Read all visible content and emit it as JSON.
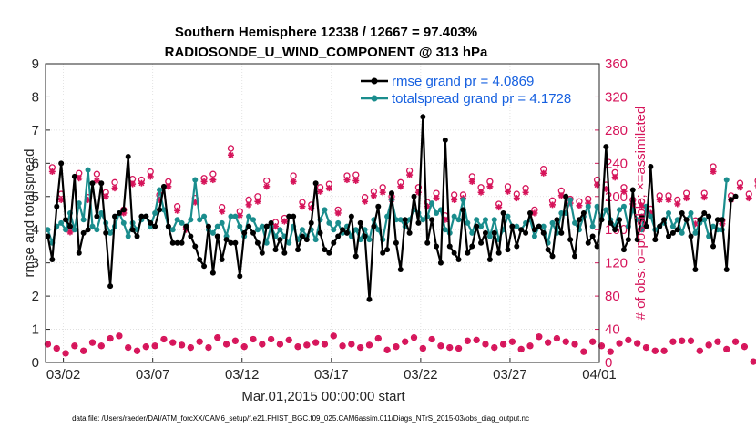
{
  "chart_data": {
    "type": "line",
    "title": "Southern Hemisphere 12338 / 12667 = 97.403%",
    "subtitle": "RADIOSONDE_U_WIND_COMPONENT @ 313 hPa",
    "xlabel": "Mar.01,2015 00:00:00 start",
    "ylabel": "rmse and totalspread",
    "y2label": "# of obs: o=possible; ×=assimilated",
    "xlim": [
      1,
      32
    ],
    "ylim": [
      0,
      9
    ],
    "y2lim": [
      0,
      360
    ],
    "x_ticks": [
      2,
      7,
      12,
      17,
      22,
      27,
      32
    ],
    "x_tick_labels": [
      "03/02",
      "03/07",
      "03/12",
      "03/17",
      "03/22",
      "03/27",
      "04/01"
    ],
    "y_ticks": [
      "0",
      "1",
      "2",
      "3",
      "4",
      "5",
      "6",
      "7",
      "8",
      "9"
    ],
    "y2_ticks": [
      "0",
      "40",
      "80",
      "120",
      "160",
      "200",
      "240",
      "280",
      "320",
      "360"
    ],
    "x_step_days": 0.25,
    "x_start_day": 1.125,
    "series": [
      {
        "name": "rmse grand pr = 4.0869",
        "color": "#000000",
        "axis": "left",
        "values": [
          3.8,
          3.1,
          4.7,
          6.0,
          4.3,
          4.1,
          5.6,
          3.3,
          3.9,
          4.0,
          5.4,
          4.4,
          5.4,
          3.9,
          2.3,
          4.4,
          4.5,
          4.6,
          6.2,
          4.0,
          3.8,
          4.4,
          4.4,
          4.2,
          4.1,
          4.6,
          5.3,
          4.1,
          3.6,
          3.6,
          3.6,
          4.1,
          3.8,
          3.5,
          3.1,
          2.9,
          4.1,
          2.7,
          3.8,
          3.1,
          3.7,
          3.6,
          3.6,
          2.6,
          3.9,
          4.1,
          3.9,
          3.6,
          3.3,
          4.1,
          4.2,
          3.4,
          3.7,
          3.3,
          4.4,
          4.4,
          3.4,
          3.8,
          3.7,
          4.2,
          5.4,
          3.9,
          3.4,
          3.3,
          3.6,
          3.8,
          4.0,
          3.9,
          4.4,
          3.2,
          4.2,
          3.8,
          1.9,
          4.1,
          4.7,
          3.3,
          3.4,
          5.1,
          3.6,
          2.8,
          4.3,
          3.9,
          5.0,
          4.2,
          7.4,
          3.6,
          4.3,
          3.5,
          3.0,
          6.7,
          3.5,
          3.3,
          3.1,
          4.6,
          3.3,
          3.5,
          4.1,
          3.6,
          3.9,
          3.1,
          3.9,
          3.3,
          4.5,
          3.4,
          4.1,
          3.5,
          4.0,
          3.9,
          4.5,
          4.0,
          4.1,
          3.9,
          3.4,
          3.2,
          4.3,
          3.9,
          5.0,
          3.7,
          3.2,
          4.3,
          4.5,
          3.6,
          3.8,
          3.5,
          4.3,
          6.5,
          4.2,
          4.0,
          4.3,
          3.4,
          3.7,
          5.2,
          3.7,
          4.4,
          4.1,
          5.9,
          3.7,
          4.1,
          4.3,
          3.8,
          3.9,
          4.0,
          4.5,
          4.3,
          3.8,
          2.8,
          4.3,
          4.5,
          4.4,
          3.5,
          4.3,
          4.3,
          2.8,
          4.9,
          5.0
        ]
      },
      {
        "name": "totalspread grand pr = 4.1728",
        "color": "#1a8d8d",
        "axis": "left",
        "values": [
          4.0,
          3.6,
          4.1,
          4.2,
          4.0,
          4.5,
          4.0,
          4.8,
          4.3,
          5.8,
          4.1,
          4.0,
          4.5,
          4.2,
          3.9,
          4.1,
          4.5,
          4.2,
          3.8,
          4.2,
          4.0,
          4.3,
          4.4,
          4.1,
          4.5,
          5.2,
          4.6,
          4.1,
          4.0,
          4.3,
          4.2,
          4.1,
          4.3,
          5.5,
          4.3,
          4.4,
          4.0,
          3.9,
          4.1,
          4.2,
          3.8,
          4.4,
          4.4,
          4.1,
          3.8,
          4.4,
          4.3,
          4.0,
          4.1,
          3.6,
          4.1,
          3.8,
          4.0,
          3.8,
          3.6,
          4.1,
          3.7,
          4.0,
          3.8,
          4.0,
          3.7,
          4.3,
          4.6,
          4.2,
          4.0,
          4.2,
          3.9,
          4.1,
          3.8,
          4.0,
          3.7,
          4.0,
          3.7,
          4.3,
          4.0,
          3.7,
          4.4,
          4.9,
          4.3,
          4.3,
          4.1,
          4.3,
          4.6,
          4.5,
          4.3,
          4.4,
          4.8,
          4.5,
          4.6,
          4.0,
          3.9,
          4.4,
          4.3,
          4.9,
          4.2,
          3.9,
          4.3,
          4.1,
          4.3,
          3.8,
          4.3,
          3.7,
          4.0,
          4.4,
          4.1,
          4.1,
          4.0,
          4.2,
          4.3,
          3.8,
          4.1,
          4.1,
          3.6,
          4.2,
          3.9,
          4.5,
          4.5,
          4.9,
          4.2,
          4.0,
          4.4,
          4.7,
          4.1,
          4.7,
          4.3,
          4.6,
          4.3,
          4.1,
          4.6,
          4.7,
          4.1,
          4.6,
          4.3,
          4.0,
          4.7,
          4.4,
          4.0,
          4.1,
          4.2,
          4.5,
          4.1,
          4.3,
          3.9,
          4.3,
          4.5,
          3.9,
          4.2,
          4.3,
          3.8,
          4.1,
          4.0,
          4.0,
          5.5
        ]
      },
      {
        "name": "obs possible",
        "color": "#d6145a",
        "axis": "right",
        "marker": "o",
        "values": [
          22,
          235,
          17,
          203,
          11,
          162,
          20,
          228,
          14,
          199,
          24,
          227,
          20,
          205,
          29,
          217,
          32,
          184,
          18,
          221,
          14,
          220,
          19,
          230,
          20,
          202,
          28,
          218,
          24,
          188,
          21,
          163,
          18,
          198,
          25,
          222,
          18,
          227,
          30,
          187,
          22,
          258,
          26,
          182,
          19,
          196,
          28,
          200,
          22,
          219,
          28,
          169,
          22,
          174,
          27,
          225,
          19,
          193,
          21,
          190,
          24,
          211,
          22,
          215,
          32,
          184,
          20,
          225,
          22,
          226,
          18,
          199,
          21,
          206,
          29,
          211,
          15,
          200,
          19,
          217,
          25,
          231,
          30,
          211,
          17,
          193,
          28,
          204,
          20,
          177,
          18,
          202,
          17,
          202,
          26,
          224,
          27,
          211,
          22,
          218,
          18,
          191,
          22,
          212,
          25,
          203,
          16,
          210,
          20,
          184,
          31,
          233,
          24,
          195,
          29,
          207,
          25,
          197,
          22,
          194,
          13,
          197,
          25,
          220,
          20,
          214,
          13,
          229,
          23,
          211,
          27,
          196,
          23,
          194,
          18,
          185,
          14,
          201,
          14,
          201,
          25,
          196,
          26,
          204,
          26,
          171,
          14,
          204,
          21,
          236,
          25,
          171,
          16,
          201,
          25,
          216,
          19,
          203,
          1,
          219
        ]
      },
      {
        "name": "obs assimilated",
        "color": "#d6145a",
        "axis": "right",
        "marker": "*",
        "values": [
          22,
          230,
          17,
          196,
          11,
          157,
          20,
          222,
          14,
          196,
          24,
          219,
          20,
          200,
          29,
          210,
          32,
          180,
          18,
          215,
          14,
          216,
          19,
          224,
          20,
          196,
          28,
          212,
          24,
          183,
          21,
          160,
          18,
          193,
          25,
          218,
          18,
          220,
          30,
          182,
          22,
          250,
          26,
          177,
          19,
          190,
          28,
          194,
          22,
          212,
          28,
          164,
          22,
          170,
          27,
          218,
          19,
          188,
          21,
          186,
          24,
          206,
          22,
          210,
          32,
          180,
          20,
          220,
          22,
          219,
          18,
          194,
          21,
          201,
          29,
          205,
          15,
          196,
          19,
          212,
          25,
          226,
          30,
          205,
          17,
          188,
          28,
          198,
          20,
          172,
          18,
          196,
          17,
          198,
          26,
          218,
          27,
          205,
          22,
          212,
          18,
          187,
          22,
          206,
          25,
          198,
          16,
          205,
          20,
          180,
          31,
          228,
          24,
          190,
          29,
          201,
          25,
          192,
          22,
          189,
          13,
          192,
          25,
          214,
          20,
          209,
          13,
          223,
          23,
          206,
          27,
          191,
          23,
          189,
          18,
          180,
          14,
          196,
          14,
          196,
          25,
          191,
          26,
          198,
          26,
          167,
          14,
          199,
          21,
          230,
          25,
          167,
          16,
          196,
          25,
          211,
          19,
          198,
          1,
          213
        ]
      }
    ],
    "legend": {
      "location": "top-right",
      "entries": [
        "rmse grand pr = 4.0869",
        "totalspread grand pr = 4.1728"
      ]
    }
  },
  "footer": "data file: /Users/raeder/DAI/ATM_forcXX/CAM6_setup/f.e21.FHIST_BGC.f09_025.CAM6assim.011/Diags_NTrS_2015-03/obs_diag_output.nc",
  "colors": {
    "rmse": "#000000",
    "spread": "#1a8d8d",
    "obs": "#d6145a",
    "legend_text": "#1660e0"
  }
}
